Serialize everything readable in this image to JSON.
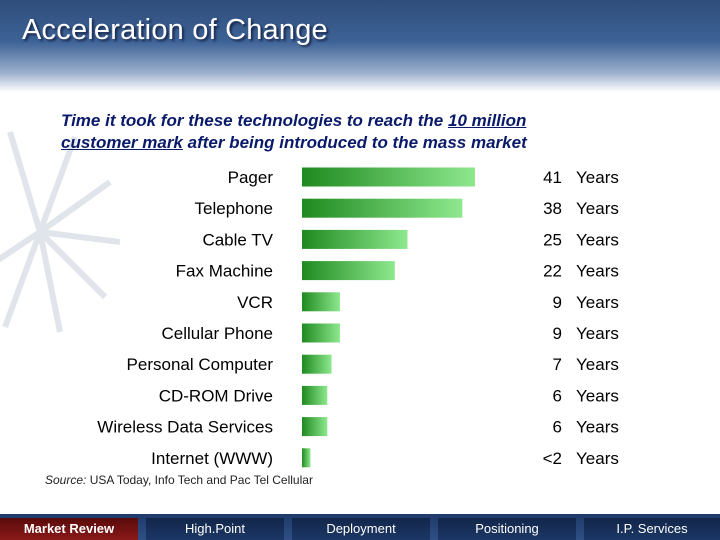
{
  "slide": {
    "title": "Acceleration of Change",
    "subtitle_line1_pre": "Time it took  for these technologies to reach the ",
    "subtitle_line1_u": "10 million",
    "subtitle_line2_u": "customer mark",
    "subtitle_line2_post": " after being introduced to the mass market",
    "source_label": "Source:",
    "source_text": " USA Today, Info Tech and Pac Tel Cellular"
  },
  "colors": {
    "bar_dark": "#1f8a1f",
    "bar_light": "#8ee88e",
    "header": "#3d6296",
    "nav": "#1f3a6a",
    "active_tab": "#7a1010"
  },
  "nav": {
    "tabs": [
      {
        "label": "Market Review",
        "active": true
      },
      {
        "label": "High.Point",
        "active": false
      },
      {
        "label": "Deployment",
        "active": false
      },
      {
        "label": "Positioning",
        "active": false
      },
      {
        "label": "I.P. Services",
        "active": false
      }
    ]
  },
  "chart_data": {
    "type": "bar",
    "orientation": "horizontal",
    "categories": [
      "Pager",
      "Telephone",
      "Cable TV",
      "Fax Machine",
      "VCR",
      "Cellular Phone",
      "Personal Computer",
      "CD-ROM Drive",
      "Wireless Data Services",
      "Internet (WWW)"
    ],
    "values": [
      41,
      38,
      25,
      22,
      9,
      9,
      7,
      6,
      6,
      2
    ],
    "value_labels": [
      "41",
      "38",
      "25",
      "22",
      "9",
      "9",
      "7",
      "6",
      "6",
      "<2"
    ],
    "unit_label": "Years",
    "xlim": [
      0,
      41
    ],
    "grid": false,
    "legend": "none"
  }
}
